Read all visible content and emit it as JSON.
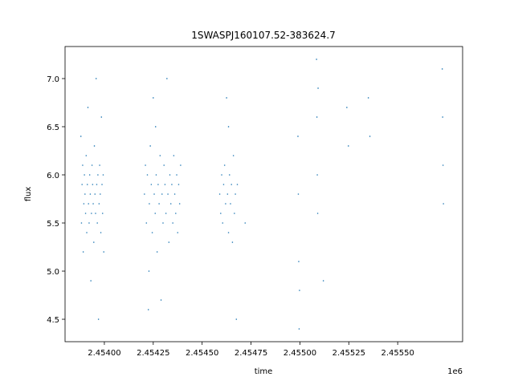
{
  "chart_data": {
    "type": "scatter",
    "title": "1SWASPJ160107.52-383624.7",
    "x_label": "time",
    "y_label": "flux",
    "x_offset_label": "1e6",
    "color": "#1f77b4",
    "xlim": [
      2453799,
      2455832
    ],
    "ylim": [
      4.267,
      7.333
    ],
    "xticks": [
      {
        "value": 2454000,
        "label": "2.45400"
      },
      {
        "value": 2454250,
        "label": "2.45425"
      },
      {
        "value": 2454500,
        "label": "2.45450"
      },
      {
        "value": 2454750,
        "label": "2.45475"
      },
      {
        "value": 2455000,
        "label": "2.45500"
      },
      {
        "value": 2455250,
        "label": "2.45525"
      },
      {
        "value": 2455500,
        "label": "2.45550"
      }
    ],
    "yticks": [
      4.5,
      {
        "value": 5,
        "label": "5.0"
      },
      5.5,
      {
        "value": 6,
        "label": "6.0"
      },
      6.5,
      {
        "value": 7,
        "label": "7.0"
      }
    ],
    "x": [
      2453880,
      2453883,
      2453886,
      2453889,
      2453892,
      2453895,
      2453898,
      2453901,
      2453904,
      2453907,
      2453910,
      2453913,
      2453916,
      2453919,
      2453922,
      2453925,
      2453928,
      2453931,
      2453934,
      2453937,
      2453940,
      2453943,
      2453946,
      2453949,
      2453952,
      2453955,
      2453958,
      2453961,
      2453964,
      2453967,
      2453970,
      2453973,
      2453976,
      2453979,
      2453982,
      2453985,
      2453988,
      2453991,
      2453994,
      2453997,
      2454205,
      2454210,
      2454215,
      2454220,
      2454225,
      2454230,
      2454235,
      2454240,
      2454245,
      2454250,
      2454255,
      2454260,
      2454265,
      2454270,
      2454275,
      2454280,
      2454285,
      2454290,
      2454295,
      2454300,
      2454305,
      2454310,
      2454315,
      2454320,
      2454325,
      2454330,
      2454335,
      2454340,
      2454345,
      2454350,
      2454355,
      2454360,
      2454365,
      2454370,
      2454375,
      2454380,
      2454385,
      2454390,
      2454228,
      2454262,
      2454590,
      2454595,
      2454600,
      2454605,
      2454610,
      2454615,
      2454620,
      2454625,
      2454630,
      2454635,
      2454640,
      2454645,
      2454650,
      2454655,
      2454660,
      2454665,
      2454670,
      2454675,
      2454680,
      2454635,
      2454720,
      2454990,
      2454992,
      2454994,
      2454996,
      2454998,
      2455085,
      2455087,
      2455089,
      2455091,
      2455093,
      2455120,
      2455240,
      2455248,
      2455350,
      2455358,
      2455728,
      2455730,
      2455732,
      2455734
    ],
    "values": [
      6.4,
      5.5,
      5.9,
      6.1,
      5.2,
      5.7,
      6.0,
      5.8,
      5.6,
      6.2,
      5.4,
      5.9,
      6.7,
      5.7,
      5.5,
      6.0,
      5.8,
      4.9,
      5.6,
      6.1,
      5.9,
      5.7,
      5.3,
      6.3,
      5.8,
      5.6,
      7.0,
      5.9,
      5.5,
      6.0,
      4.5,
      5.7,
      6.1,
      5.8,
      5.4,
      6.6,
      5.9,
      5.6,
      6.0,
      5.2,
      5.8,
      6.1,
      5.5,
      6.0,
      4.6,
      5.7,
      6.3,
      5.9,
      5.4,
      6.8,
      5.8,
      5.6,
      6.0,
      5.2,
      5.9,
      5.7,
      6.2,
      4.7,
      5.8,
      5.5,
      6.1,
      5.9,
      5.6,
      7.0,
      5.8,
      5.3,
      6.0,
      5.7,
      5.9,
      5.5,
      6.2,
      5.8,
      5.6,
      6.0,
      5.4,
      5.9,
      5.7,
      6.1,
      5.0,
      6.5,
      5.8,
      5.6,
      6.0,
      5.5,
      5.9,
      6.1,
      5.7,
      6.8,
      5.8,
      5.4,
      6.0,
      5.7,
      5.9,
      5.3,
      6.2,
      5.6,
      5.8,
      4.5,
      5.9,
      6.5,
      5.5,
      6.4,
      5.8,
      5.1,
      4.4,
      4.8,
      7.2,
      6.6,
      6.0,
      5.6,
      6.9,
      4.9,
      6.7,
      6.3,
      6.8,
      6.4,
      7.1,
      6.6,
      6.1,
      5.7
    ]
  }
}
